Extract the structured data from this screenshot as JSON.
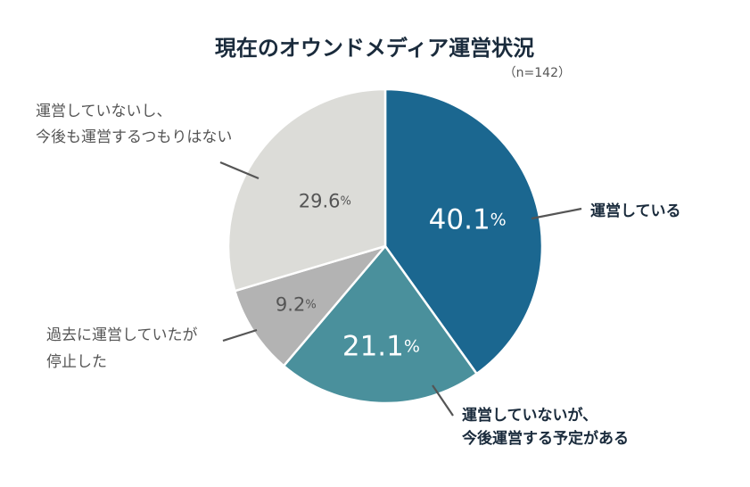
{
  "chart_data": {
    "type": "pie",
    "title": "現在のオウンドメディア運営状況",
    "subtitle": "（n=142）",
    "slices": [
      {
        "lines": [
          "運営している"
        ],
        "value": 40.1,
        "display": "40.1%",
        "color": "#1b6790"
      },
      {
        "lines": [
          "運営していないが、",
          "今後運営する予定がある"
        ],
        "value": 21.1,
        "display": "21.1%",
        "color": "#4a909c"
      },
      {
        "lines": [
          "過去に運営していたが",
          "停止した"
        ],
        "value": 9.2,
        "display": "9.2%",
        "color": "#b3b3b3"
      },
      {
        "lines": [
          "運営していないし、",
          "今後も運営するつもりはない"
        ],
        "value": 29.6,
        "display": "29.6%",
        "color": "#dcdcd8"
      }
    ]
  }
}
